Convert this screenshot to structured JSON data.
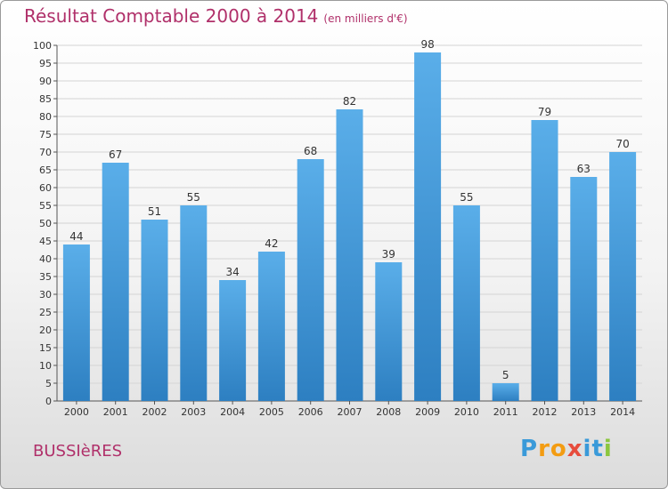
{
  "title": "Résultat Comptable 2000 à 2014",
  "unit_note": "(en milliers d'€)",
  "commune": "BUSSIèRES",
  "brand": {
    "text": "Proxiti",
    "letters": [
      "P",
      "r",
      "o",
      "x",
      "i",
      "t",
      "i"
    ],
    "letter_colors": [
      "#3a9ad9",
      "#f39c12",
      "#f39c12",
      "#e74c3c",
      "#3a9ad9",
      "#3a9ad9",
      "#8cc63f"
    ]
  },
  "colors": {
    "bar_top": "#5aaee9",
    "bar_bottom": "#2d7fc1",
    "title": "#b0306a"
  },
  "chart_data": {
    "type": "bar",
    "categories": [
      "2000",
      "2001",
      "2002",
      "2003",
      "2004",
      "2005",
      "2006",
      "2007",
      "2008",
      "2009",
      "2010",
      "2011",
      "2012",
      "2013",
      "2014"
    ],
    "values": [
      44,
      67,
      51,
      55,
      34,
      42,
      68,
      82,
      39,
      98,
      55,
      5,
      79,
      63,
      70
    ],
    "ylim": [
      0,
      100
    ],
    "yticks": [
      0,
      5,
      10,
      15,
      20,
      25,
      30,
      35,
      40,
      45,
      50,
      55,
      60,
      65,
      70,
      75,
      80,
      85,
      90,
      95,
      100
    ],
    "grid": true,
    "data_labels": true
  }
}
